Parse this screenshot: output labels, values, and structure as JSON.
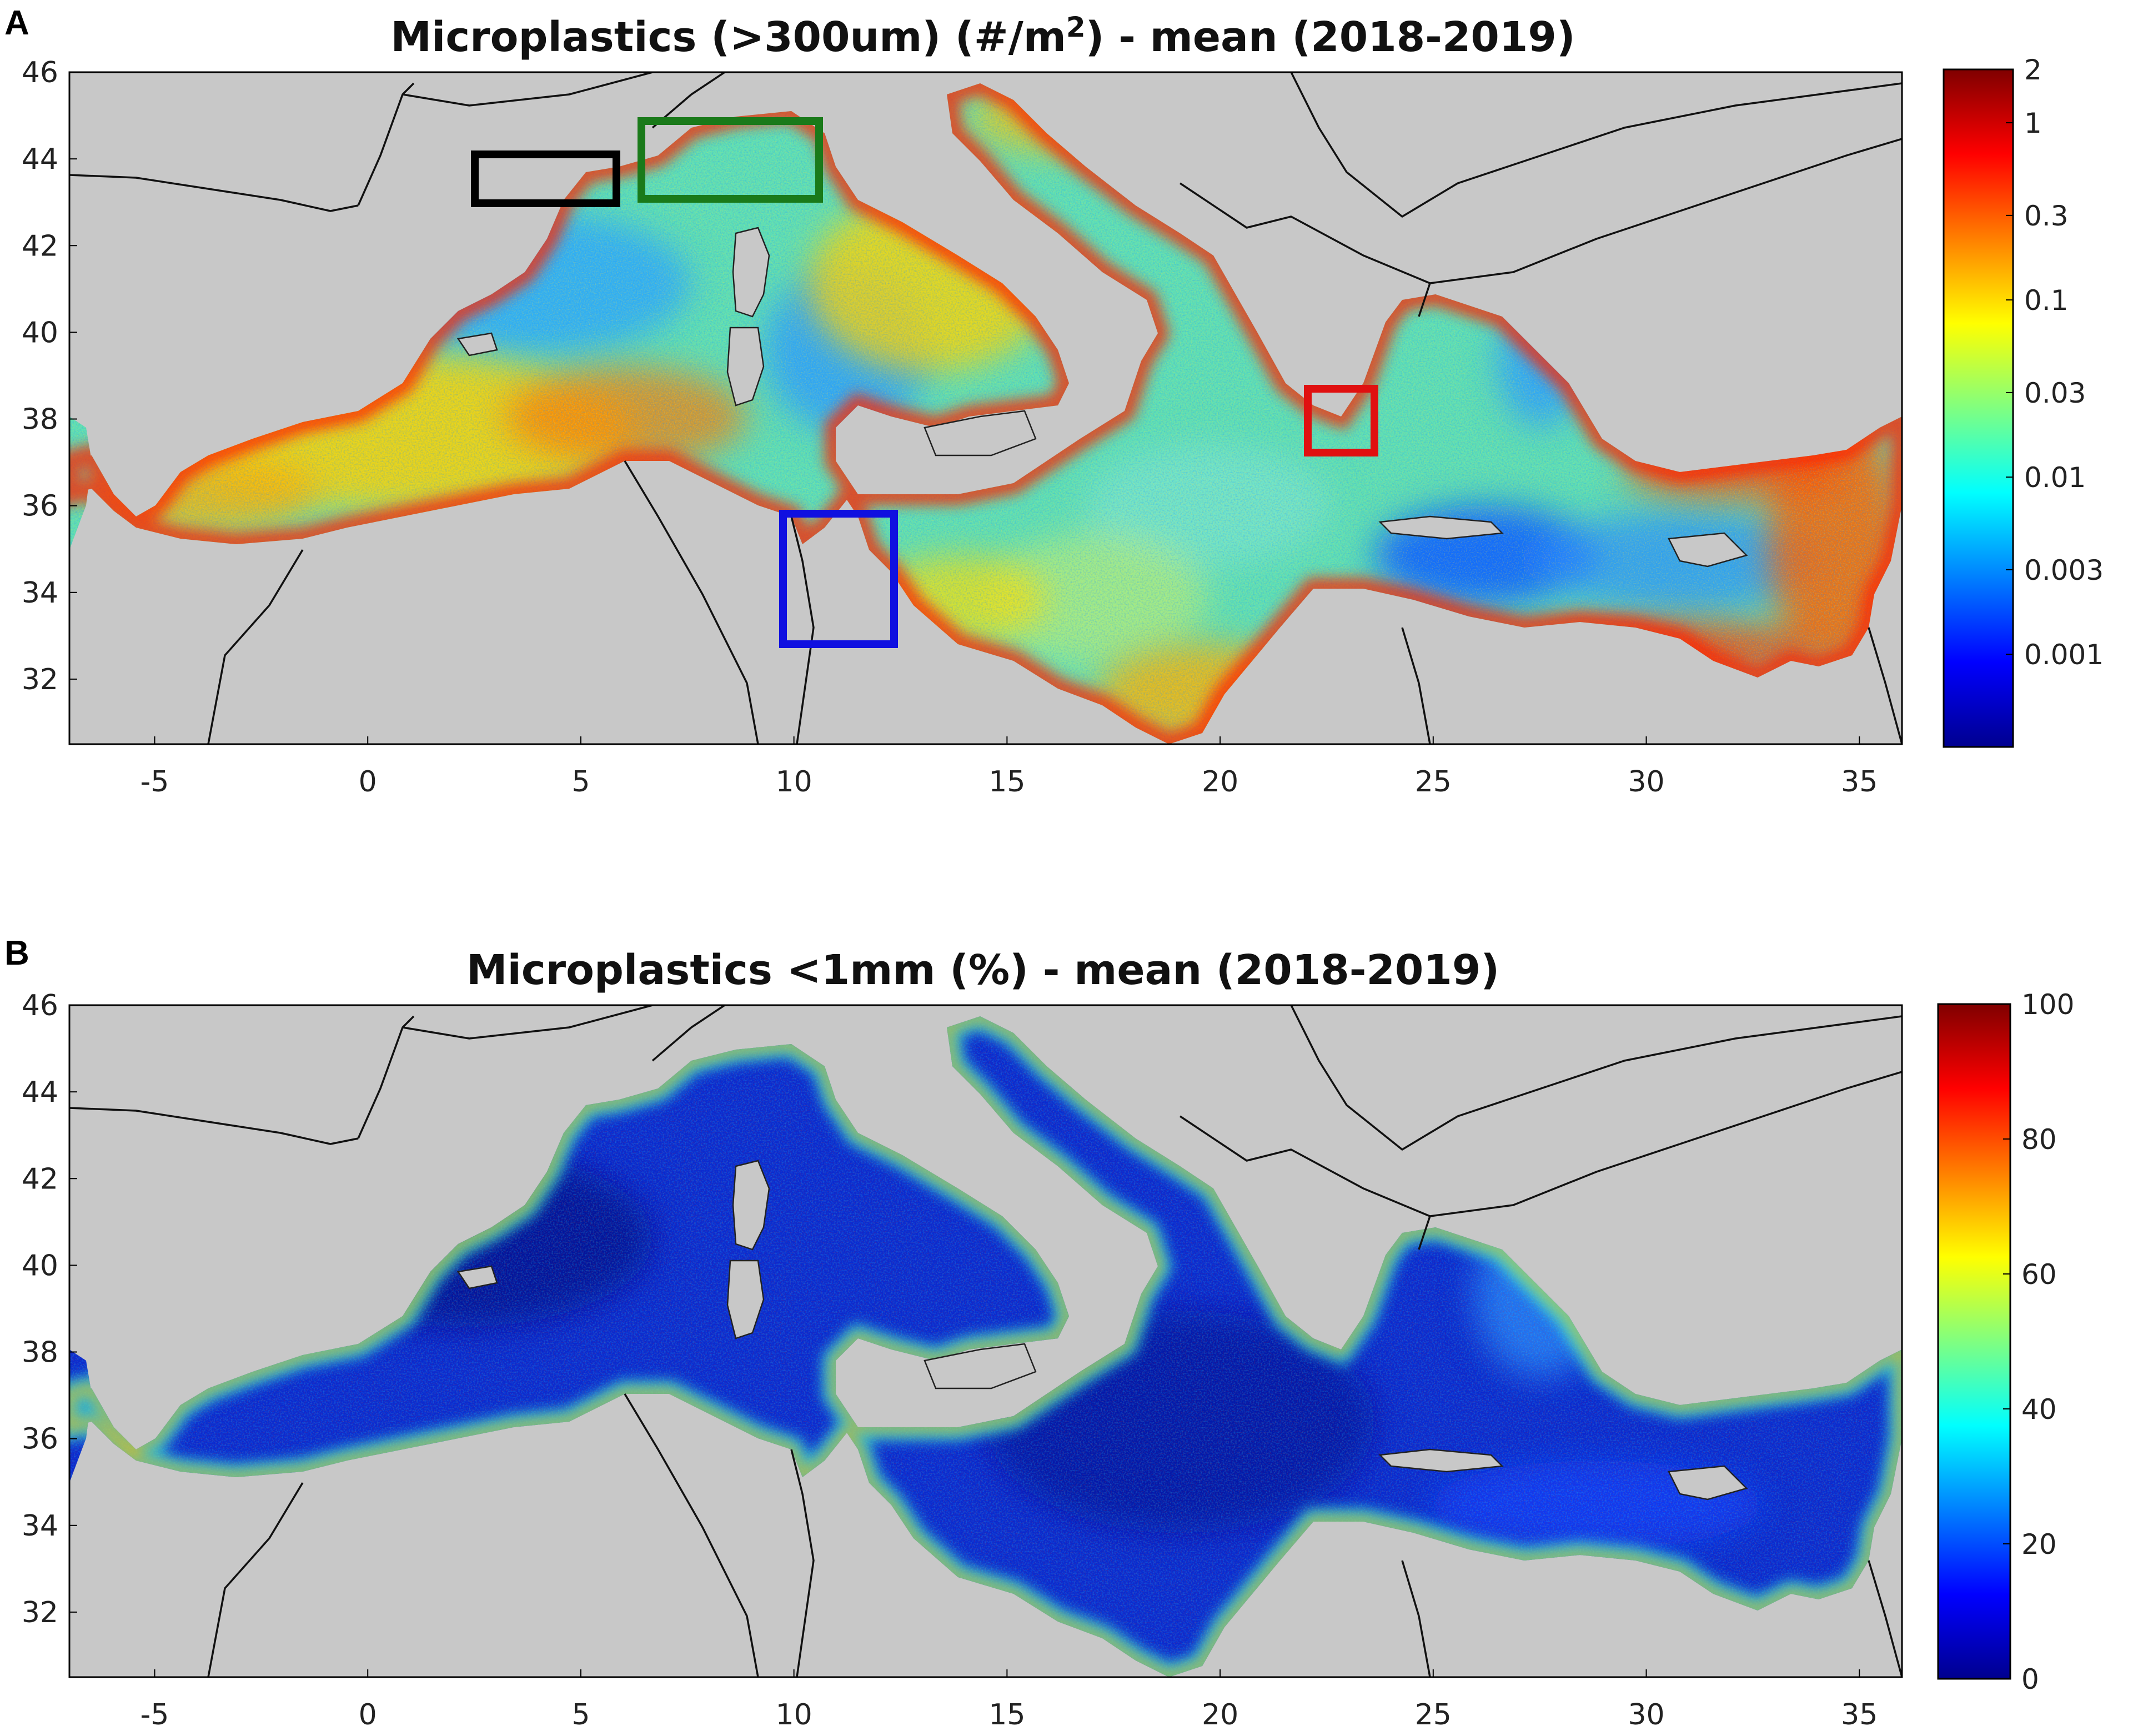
{
  "panels": [
    {
      "letter": "A",
      "title_pre": "Microplastics (>300um) (#/m",
      "title_sup": "2",
      "title_post": ") - mean (2018-2019)",
      "colorbar": {
        "scale": "log",
        "colormap": "jet",
        "tick_labels": [
          "2",
          "1",
          "0.3",
          "0.1",
          "0.03",
          "0.01",
          "0.003",
          "0.001"
        ],
        "tick_values": [
          2,
          1,
          0.3,
          0.1,
          0.03,
          0.01,
          0.003,
          0.001
        ],
        "range": [
          0.0003,
          2
        ]
      },
      "boxes": [
        {
          "color": "#000000",
          "lon": [
            2.6,
            6.0
          ],
          "lat": [
            42.7,
            44.0
          ]
        },
        {
          "color": "#1a7a1a",
          "lon": [
            6.7,
            10.9
          ],
          "lat": [
            43.1,
            45.0
          ]
        },
        {
          "color": "#e01010",
          "lon": [
            23.1,
            24.7
          ],
          "lat": [
            36.9,
            38.5
          ]
        },
        {
          "color": "#1010e0",
          "lon": [
            10.0,
            12.6
          ],
          "lat": [
            32.7,
            35.8
          ]
        }
      ]
    },
    {
      "letter": "B",
      "title": "Microplastics <1mm (%) - mean (2018-2019)",
      "colorbar": {
        "scale": "linear",
        "colormap": "jet",
        "tick_labels": [
          "100",
          "80",
          "60",
          "40",
          "20",
          "0"
        ],
        "tick_values": [
          100,
          80,
          60,
          40,
          20,
          0
        ],
        "range": [
          0,
          100
        ]
      }
    }
  ],
  "axes": {
    "lon_ticks": [
      "-5",
      "0",
      "5",
      "10",
      "15",
      "20",
      "25",
      "30",
      "35"
    ],
    "lat_ticks": [
      "46",
      "44",
      "42",
      "40",
      "38",
      "36",
      "34",
      "32"
    ],
    "lon_range": [
      -7,
      36
    ],
    "lat_range": [
      30.5,
      46
    ]
  },
  "colors": {
    "land": "#c8c8c8",
    "frame": "#000000"
  }
}
